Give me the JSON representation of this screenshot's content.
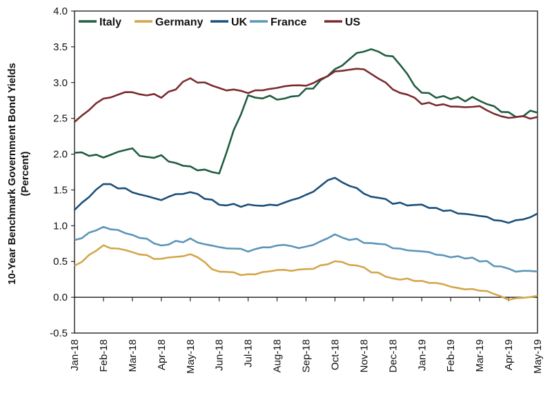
{
  "chart_data": {
    "type": "line",
    "ylabel": "10-Year Benchmark Government Bond Yields",
    "ylabel2": "(Percent)",
    "ylim": [
      -0.5,
      4.0
    ],
    "yticks": [
      "4.0",
      "3.5",
      "3.0",
      "2.5",
      "2.0",
      "1.5",
      "1.0",
      "0.5",
      "0.0",
      "-0.5"
    ],
    "ytick_values": [
      4.0,
      3.5,
      3.0,
      2.5,
      2.0,
      1.5,
      1.0,
      0.5,
      0.0,
      -0.5
    ],
    "x_categories": [
      "Jan-18",
      "Feb-18",
      "Mar-18",
      "Apr-18",
      "May-18",
      "Jun-18",
      "Jul-18",
      "Aug-18",
      "Sep-18",
      "Oct-18",
      "Nov-18",
      "Dec-18",
      "Jan-19",
      "Feb-19",
      "Mar-19",
      "Apr-19",
      "May-19"
    ],
    "legend_position": "top-left",
    "grid": false,
    "series": [
      {
        "name": "Italy",
        "color": "#1f5c3f",
        "values": [
          2.02,
          1.98,
          2.04,
          1.96,
          1.8,
          1.77,
          2.85,
          2.78,
          2.88,
          3.15,
          3.45,
          3.4,
          2.85,
          2.77,
          2.75,
          2.55,
          2.58
        ]
      },
      {
        "name": "Germany",
        "color": "#d4a64a",
        "values": [
          0.44,
          0.72,
          0.65,
          0.52,
          0.6,
          0.35,
          0.32,
          0.37,
          0.38,
          0.5,
          0.4,
          0.28,
          0.22,
          0.14,
          0.1,
          -0.04,
          0.02
        ]
      },
      {
        "name": "UK",
        "color": "#1a4f7a",
        "values": [
          1.22,
          1.6,
          1.48,
          1.38,
          1.48,
          1.3,
          1.28,
          1.3,
          1.42,
          1.68,
          1.45,
          1.32,
          1.28,
          1.2,
          1.15,
          1.05,
          1.17
        ]
      },
      {
        "name": "France",
        "color": "#5b95b8",
        "values": [
          0.8,
          0.98,
          0.88,
          0.74,
          0.8,
          0.68,
          0.65,
          0.72,
          0.7,
          0.86,
          0.78,
          0.7,
          0.62,
          0.58,
          0.52,
          0.38,
          0.36
        ]
      },
      {
        "name": "US",
        "color": "#7b2a2e",
        "values": [
          2.45,
          2.8,
          2.87,
          2.8,
          3.05,
          2.92,
          2.85,
          2.95,
          2.95,
          3.15,
          3.18,
          2.92,
          2.72,
          2.68,
          2.65,
          2.5,
          2.52
        ]
      }
    ]
  }
}
